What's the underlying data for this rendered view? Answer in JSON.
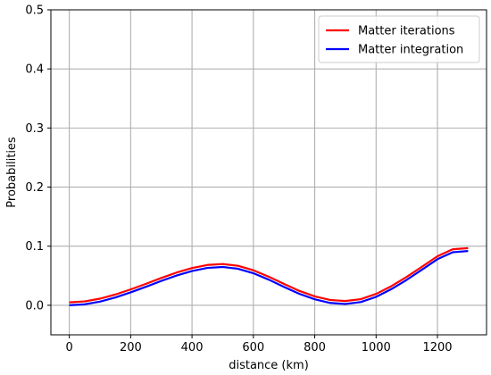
{
  "chart_data": {
    "type": "line",
    "title": "",
    "xlabel": "distance (km)",
    "ylabel": "Probabilities",
    "xlim": [
      -60,
      1360
    ],
    "ylim": [
      -0.05,
      0.5
    ],
    "xticks": [
      0,
      200,
      400,
      600,
      800,
      1000,
      1200
    ],
    "xtick_labels": [
      "0",
      "200",
      "400",
      "600",
      "800",
      "1000",
      "1200"
    ],
    "yticks": [
      0.0,
      0.1,
      0.2,
      0.3,
      0.4,
      0.5
    ],
    "ytick_labels": [
      "0.0",
      "0.1",
      "0.2",
      "0.3",
      "0.4",
      "0.5"
    ],
    "grid": true,
    "legend_position": "top-right",
    "x": [
      0,
      50,
      100,
      150,
      200,
      250,
      300,
      350,
      400,
      450,
      500,
      550,
      600,
      650,
      700,
      750,
      800,
      850,
      900,
      950,
      1000,
      1050,
      1100,
      1150,
      1200,
      1250,
      1300
    ],
    "series": [
      {
        "name": "Matter iterations",
        "color": "#ff0000",
        "values": [
          0.005,
          0.0066,
          0.0112,
          0.0182,
          0.0269,
          0.0363,
          0.0462,
          0.0554,
          0.063,
          0.0682,
          0.0698,
          0.0668,
          0.0592,
          0.0484,
          0.0361,
          0.0243,
          0.0151,
          0.009,
          0.0072,
          0.0104,
          0.0192,
          0.0324,
          0.0481,
          0.0654,
          0.083,
          0.0948,
          0.0968
        ]
      },
      {
        "name": "Matter integration",
        "color": "#0000ff",
        "values": [
          0.0,
          0.0016,
          0.0062,
          0.0132,
          0.0219,
          0.0313,
          0.0412,
          0.0504,
          0.058,
          0.0632,
          0.0648,
          0.0618,
          0.0542,
          0.0434,
          0.0311,
          0.0193,
          0.0101,
          0.004,
          0.0022,
          0.0054,
          0.0142,
          0.0274,
          0.0431,
          0.0604,
          0.078,
          0.0898,
          0.0918
        ]
      }
    ]
  }
}
